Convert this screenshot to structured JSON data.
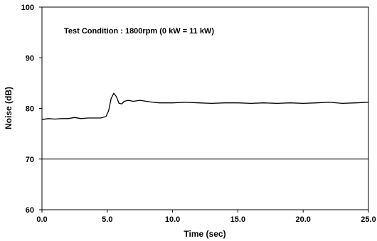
{
  "chart_data": {
    "type": "line",
    "title": "",
    "annotation": "Test Condition : 1800rpm (0 kW = 11 kW)",
    "xlabel": "Time (sec)",
    "ylabel": "Noise (dB)",
    "xlim": [
      0,
      25
    ],
    "ylim": [
      60,
      100
    ],
    "x_ticks": [
      "0.0",
      "5.0",
      "10.0",
      "15.0",
      "20.0",
      "25.0"
    ],
    "y_ticks": [
      "60",
      "70",
      "80",
      "90",
      "100"
    ],
    "grid": false,
    "reference_line": {
      "y": 70
    },
    "series": [
      {
        "x": [
          0,
          0.5,
          1,
          1.5,
          2,
          2.5,
          3,
          3.5,
          4,
          4.5,
          4.9,
          5.1,
          5.3,
          5.5,
          5.7,
          5.9,
          6.1,
          6.3,
          6.6,
          7,
          7.5,
          8,
          8.5,
          9,
          10,
          11,
          12,
          13,
          14,
          15,
          16,
          17,
          18,
          19,
          20,
          21,
          22,
          23,
          24,
          25
        ],
        "y": [
          77.8,
          78.0,
          77.9,
          78.0,
          78.0,
          78.2,
          78.0,
          78.1,
          78.1,
          78.1,
          78.4,
          79.5,
          82.0,
          83.0,
          82.3,
          81.0,
          80.9,
          81.4,
          81.6,
          81.4,
          81.6,
          81.4,
          81.2,
          81.1,
          81.1,
          81.2,
          81.1,
          81.0,
          81.1,
          81.1,
          81.0,
          81.1,
          81.0,
          81.1,
          81.0,
          81.1,
          81.2,
          81.0,
          81.1,
          81.2
        ]
      }
    ]
  }
}
